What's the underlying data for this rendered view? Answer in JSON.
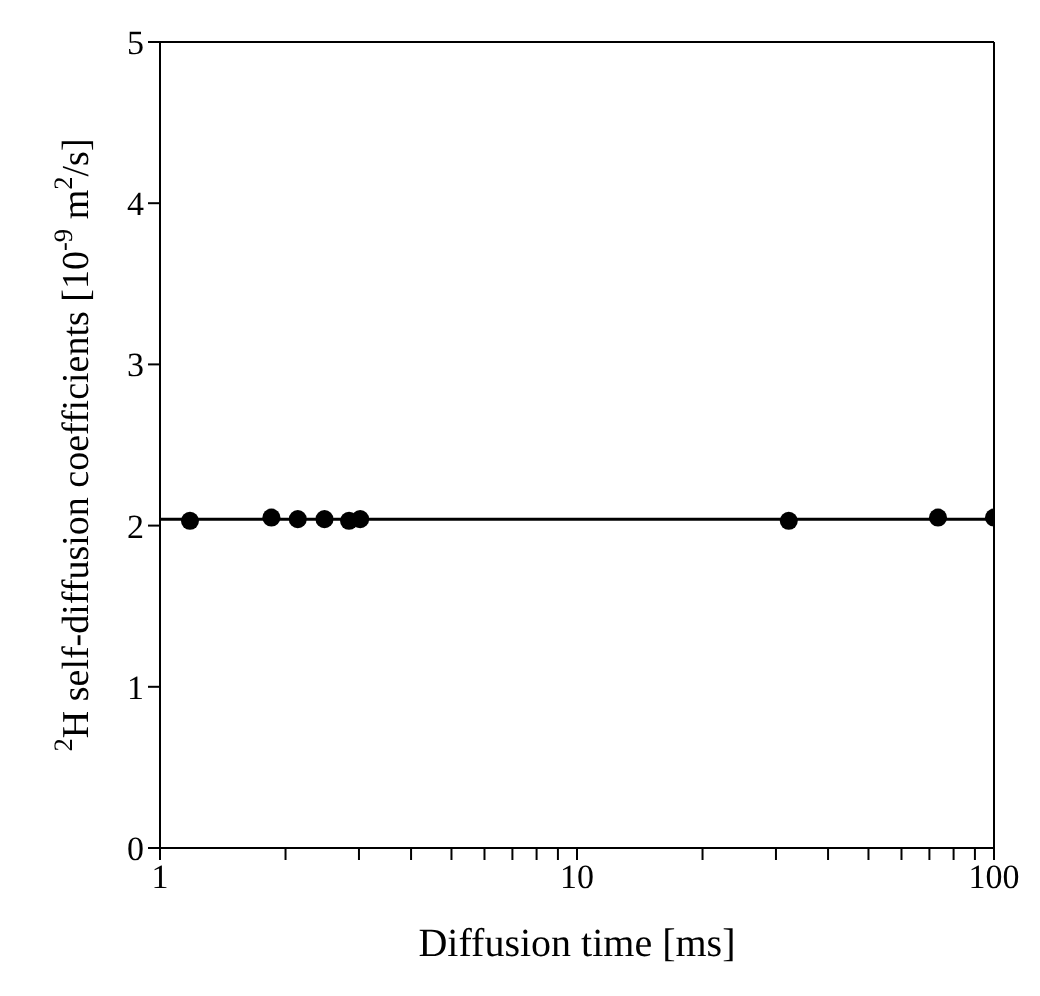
{
  "chart_data": {
    "type": "scatter",
    "xlabel": "Diffusion time [ms]",
    "ylabel": "$^{2}$H self-diffusion coefficients [10$^{-9}$ m$^{2}$/s]",
    "log": "x",
    "marker": "circle",
    "xlim": [
      1,
      100
    ],
    "xticks": [
      1,
      {
        "value": 2,
        "label": null
      },
      {
        "value": 3,
        "label": null
      },
      {
        "value": 4,
        "label": null
      },
      {
        "value": 5,
        "label": null
      },
      {
        "value": 6,
        "label": null
      },
      {
        "value": 7,
        "label": null
      },
      {
        "value": 8,
        "label": null
      },
      {
        "value": 9,
        "label": null
      },
      10,
      {
        "value": 20,
        "label": null
      },
      {
        "value": 30,
        "label": null
      },
      {
        "value": 40,
        "label": null
      },
      {
        "value": 50,
        "label": null
      },
      {
        "value": 60,
        "label": null
      },
      {
        "value": 70,
        "label": null
      },
      {
        "value": 80,
        "label": null
      },
      {
        "value": 90,
        "label": null
      },
      100
    ],
    "ylim": [
      0,
      5
    ],
    "yticks": [
      0,
      1,
      2,
      3,
      4,
      5
    ],
    "series": [
      {
        "color": "#000000",
        "x": [
          1.18,
          1.85,
          2.14,
          2.48,
          2.84,
          3.02,
          32.2,
          73.4,
          100
        ],
        "values": [
          2.03,
          2.05,
          2.04,
          2.04,
          2.03,
          2.04,
          2.03,
          2.05,
          2.05
        ]
      },
      {
        "type": "line",
        "color": "#000000",
        "line_style": "solid",
        "marker": "none",
        "x": [
          1,
          100
        ],
        "values": [
          2.04,
          2.04
        ]
      }
    ]
  }
}
